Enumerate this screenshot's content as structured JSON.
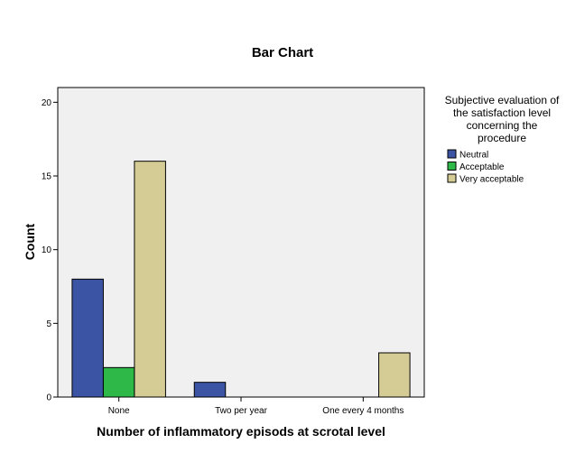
{
  "chart_data": {
    "type": "bar",
    "title": "Bar Chart",
    "xlabel": "Number of inflammatory episods at scrotal level",
    "ylabel": "Count",
    "categories": [
      "None",
      "Two per year",
      "One every 4 months"
    ],
    "series": [
      {
        "name": "Neutral",
        "color": "#3c54a4",
        "values": [
          8,
          1,
          0
        ]
      },
      {
        "name": "Acceptable",
        "color": "#2eb848",
        "values": [
          2,
          0,
          0
        ]
      },
      {
        "name": "Very acceptable",
        "color": "#d4cc94",
        "values": [
          16,
          0,
          3
        ]
      }
    ],
    "ylim": [
      0,
      21
    ],
    "yticks": [
      0,
      5,
      10,
      15,
      20
    ],
    "legend": {
      "title_lines": [
        "Subjective evaluation of",
        "the satisfaction level",
        "concerning the",
        "procedure"
      ],
      "position": "right"
    },
    "grid": false,
    "plot_background": "#f0f0f0"
  }
}
